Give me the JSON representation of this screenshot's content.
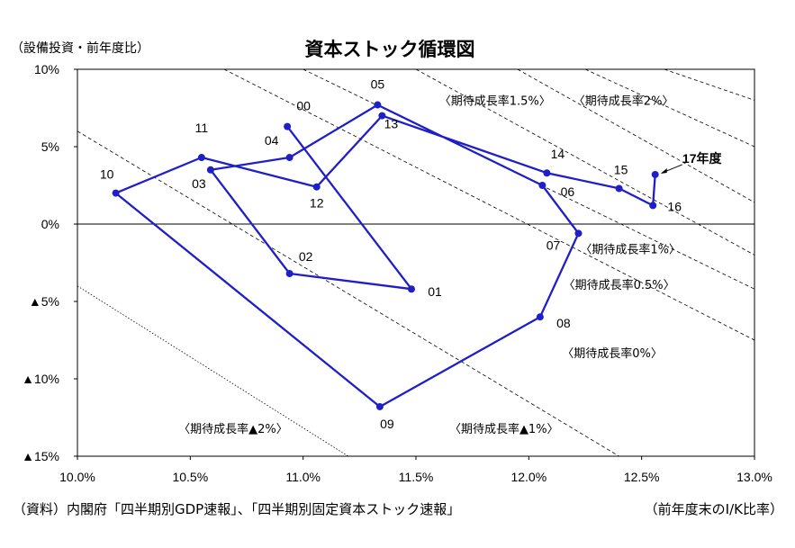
{
  "chart_data": {
    "type": "line",
    "title": "資本ストック循環図",
    "ylabel": "（設備投資・前年度比）",
    "xlabel": "（前年度末のI/K比率）",
    "source": "（資料）内閣府「四半期別GDP速報」、「四半期別固定資本ストック速報」",
    "xlim": [
      10.0,
      13.0
    ],
    "ylim": [
      -15,
      10
    ],
    "x_ticks": [
      10.0,
      10.5,
      11.0,
      11.5,
      12.0,
      12.5,
      13.0
    ],
    "x_tick_labels": [
      "10.0%",
      "10.5%",
      "11.0%",
      "11.5%",
      "12.0%",
      "12.5%",
      "13.0%"
    ],
    "y_ticks": [
      10,
      5,
      0,
      -5,
      -10,
      -15
    ],
    "y_tick_labels": [
      "10%",
      "5%",
      "0%",
      "▲5%",
      "▲10%",
      "▲15%"
    ],
    "grid": false,
    "series": [
      {
        "color": "#1f1fc8",
        "labels": [
          "00",
          "01",
          "02",
          "03",
          "04",
          "05",
          "06",
          "07",
          "08",
          "09",
          "10",
          "11",
          "12",
          "13",
          "14",
          "15",
          "16",
          "17年度"
        ],
        "x": [
          10.93,
          11.48,
          10.94,
          10.59,
          10.94,
          11.33,
          12.06,
          12.22,
          12.05,
          11.34,
          10.17,
          10.55,
          11.06,
          11.35,
          12.08,
          12.4,
          12.55,
          12.56
        ],
        "y": [
          6.3,
          -4.2,
          -3.2,
          3.5,
          4.3,
          7.7,
          2.5,
          -0.6,
          -6.0,
          -11.8,
          2.0,
          4.3,
          2.4,
          7.0,
          3.3,
          2.3,
          1.2,
          3.2
        ]
      }
    ],
    "annotations": [
      {
        "text": "〈期待成長率1.5%〉",
        "x": 11.85,
        "y": 8.0
      },
      {
        "text": "〈期待成長率2%〉",
        "x": 12.42,
        "y": 8.0
      },
      {
        "text": "〈期待成長率1%〉",
        "x": 12.45,
        "y": -1.6
      },
      {
        "text": "〈期待成長率0.5%〉",
        "x": 12.4,
        "y": -3.9
      },
      {
        "text": "〈期待成長率0%〉",
        "x": 12.37,
        "y": -8.3
      },
      {
        "text": "〈期待成長率▲1%〉",
        "x": 11.89,
        "y": -13.2
      },
      {
        "text": "〈期待成長率▲2%〉",
        "x": 10.69,
        "y": -13.2
      }
    ]
  }
}
